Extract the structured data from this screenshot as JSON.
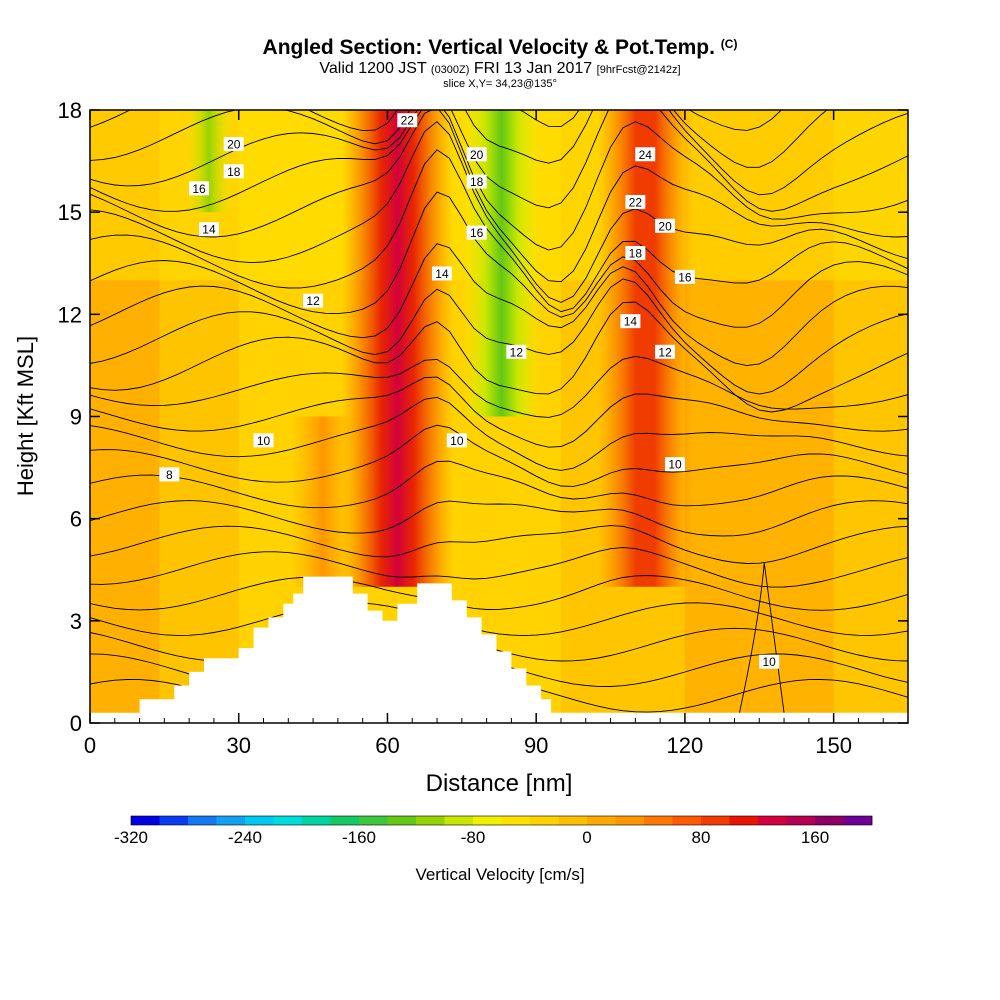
{
  "header": {
    "title": "Angled Section: Vertical Velocity & Pot.Temp.",
    "title_unit": "(C)",
    "valid_prefix": "Valid 1200 JST",
    "valid_utc": "(0300Z)",
    "valid_date": "FRI 13 Jan 2017",
    "forecast": "[9hrFcst@2142z]",
    "slice": "slice X,Y= 34,23@135°"
  },
  "chart_data": {
    "type": "heatmap",
    "xlabel": "Distance [nm]",
    "ylabel": "Height [Kft MSL]",
    "xlim": [
      0,
      165
    ],
    "ylim": [
      0,
      18
    ],
    "x_ticks": [
      0,
      30,
      60,
      90,
      120,
      150
    ],
    "y_ticks": [
      0,
      3,
      6,
      9,
      12,
      15,
      18
    ],
    "colorbar": {
      "label": "Vertical Velocity [cm/s]",
      "range": [
        -320,
        200
      ],
      "step": 20,
      "tick_values": [
        -320,
        -240,
        -160,
        -80,
        0,
        80,
        160
      ],
      "colors": [
        "#0000e0",
        "#0a3cf0",
        "#1478f0",
        "#14a0f0",
        "#00c8f0",
        "#00dcdc",
        "#00d2a0",
        "#14c864",
        "#3cc83c",
        "#64c814",
        "#96d200",
        "#c8e600",
        "#f0f000",
        "#ffe100",
        "#ffd200",
        "#ffbe00",
        "#ffaa00",
        "#ff9600",
        "#ff7800",
        "#ff5a00",
        "#f03c00",
        "#e61400",
        "#d2003c",
        "#b40050",
        "#8c0064",
        "#6e0096"
      ]
    },
    "terrain_kft": [
      [
        0,
        0.3
      ],
      [
        10,
        0.3
      ],
      [
        10,
        0.7
      ],
      [
        17,
        0.7
      ],
      [
        17,
        1.1
      ],
      [
        20,
        1.1
      ],
      [
        20,
        1.5
      ],
      [
        23,
        1.5
      ],
      [
        23,
        1.9
      ],
      [
        30,
        1.9
      ],
      [
        30,
        2.2
      ],
      [
        33,
        2.2
      ],
      [
        33,
        2.8
      ],
      [
        36,
        2.8
      ],
      [
        36,
        3.1
      ],
      [
        39,
        3.1
      ],
      [
        39,
        3.5
      ],
      [
        41,
        3.5
      ],
      [
        41,
        3.8
      ],
      [
        43,
        3.8
      ],
      [
        43,
        4.3
      ],
      [
        53,
        4.3
      ],
      [
        53,
        3.8
      ],
      [
        56,
        3.8
      ],
      [
        56,
        3.3
      ],
      [
        59,
        3.3
      ],
      [
        59,
        3.0
      ],
      [
        62,
        3.0
      ],
      [
        62,
        3.5
      ],
      [
        66,
        3.5
      ],
      [
        66,
        4.1
      ],
      [
        73,
        4.1
      ],
      [
        73,
        3.6
      ],
      [
        76,
        3.6
      ],
      [
        76,
        3.1
      ],
      [
        79,
        3.1
      ],
      [
        79,
        2.6
      ],
      [
        82,
        2.6
      ],
      [
        82,
        2.1
      ],
      [
        85,
        2.1
      ],
      [
        85,
        1.6
      ],
      [
        88,
        1.6
      ],
      [
        88,
        1.1
      ],
      [
        91,
        1.1
      ],
      [
        91,
        0.7
      ],
      [
        93,
        0.7
      ],
      [
        93,
        0.3
      ],
      [
        165,
        0.3
      ]
    ],
    "updraft_cores": [
      {
        "x": 62,
        "x_width": 7,
        "y_from": 4,
        "y_to": 18,
        "peak_cm_s": 200
      },
      {
        "x": 112,
        "x_width": 6,
        "y_from": 4,
        "y_to": 18,
        "peak_cm_s": 140
      },
      {
        "x": 47,
        "x_width": 4,
        "y_from": 4,
        "y_to": 9,
        "peak_cm_s": 80
      }
    ],
    "downdraft_cores": [
      {
        "x": 83,
        "x_width": 5,
        "y_from": 9,
        "y_to": 18,
        "peak_cm_s": -160
      },
      {
        "x": 24,
        "x_width": 3,
        "y_from": 15,
        "y_to": 18,
        "peak_cm_s": -100
      }
    ],
    "isentrope_labels": [
      {
        "text": "20",
        "x": 29,
        "y": 17.0
      },
      {
        "text": "18",
        "x": 29,
        "y": 16.2
      },
      {
        "text": "16",
        "x": 22,
        "y": 15.7
      },
      {
        "text": "14",
        "x": 24,
        "y": 14.5
      },
      {
        "text": "12",
        "x": 45,
        "y": 12.4
      },
      {
        "text": "10",
        "x": 35,
        "y": 8.3
      },
      {
        "text": "8",
        "x": 16,
        "y": 7.3
      },
      {
        "text": "22",
        "x": 64,
        "y": 17.7
      },
      {
        "text": "20",
        "x": 78,
        "y": 16.7
      },
      {
        "text": "18",
        "x": 78,
        "y": 15.9
      },
      {
        "text": "16",
        "x": 78,
        "y": 14.4
      },
      {
        "text": "14",
        "x": 71,
        "y": 13.2
      },
      {
        "text": "12",
        "x": 86,
        "y": 10.9
      },
      {
        "text": "10",
        "x": 74,
        "y": 8.3
      },
      {
        "text": "24",
        "x": 112,
        "y": 16.7
      },
      {
        "text": "22",
        "x": 110,
        "y": 15.3
      },
      {
        "text": "20",
        "x": 116,
        "y": 14.6
      },
      {
        "text": "18",
        "x": 110,
        "y": 13.8
      },
      {
        "text": "16",
        "x": 120,
        "y": 13.1
      },
      {
        "text": "14",
        "x": 109,
        "y": 11.8
      },
      {
        "text": "12",
        "x": 116,
        "y": 10.9
      },
      {
        "text": "10",
        "x": 118,
        "y": 7.6
      },
      {
        "text": "10",
        "x": 137,
        "y": 1.8
      }
    ]
  }
}
